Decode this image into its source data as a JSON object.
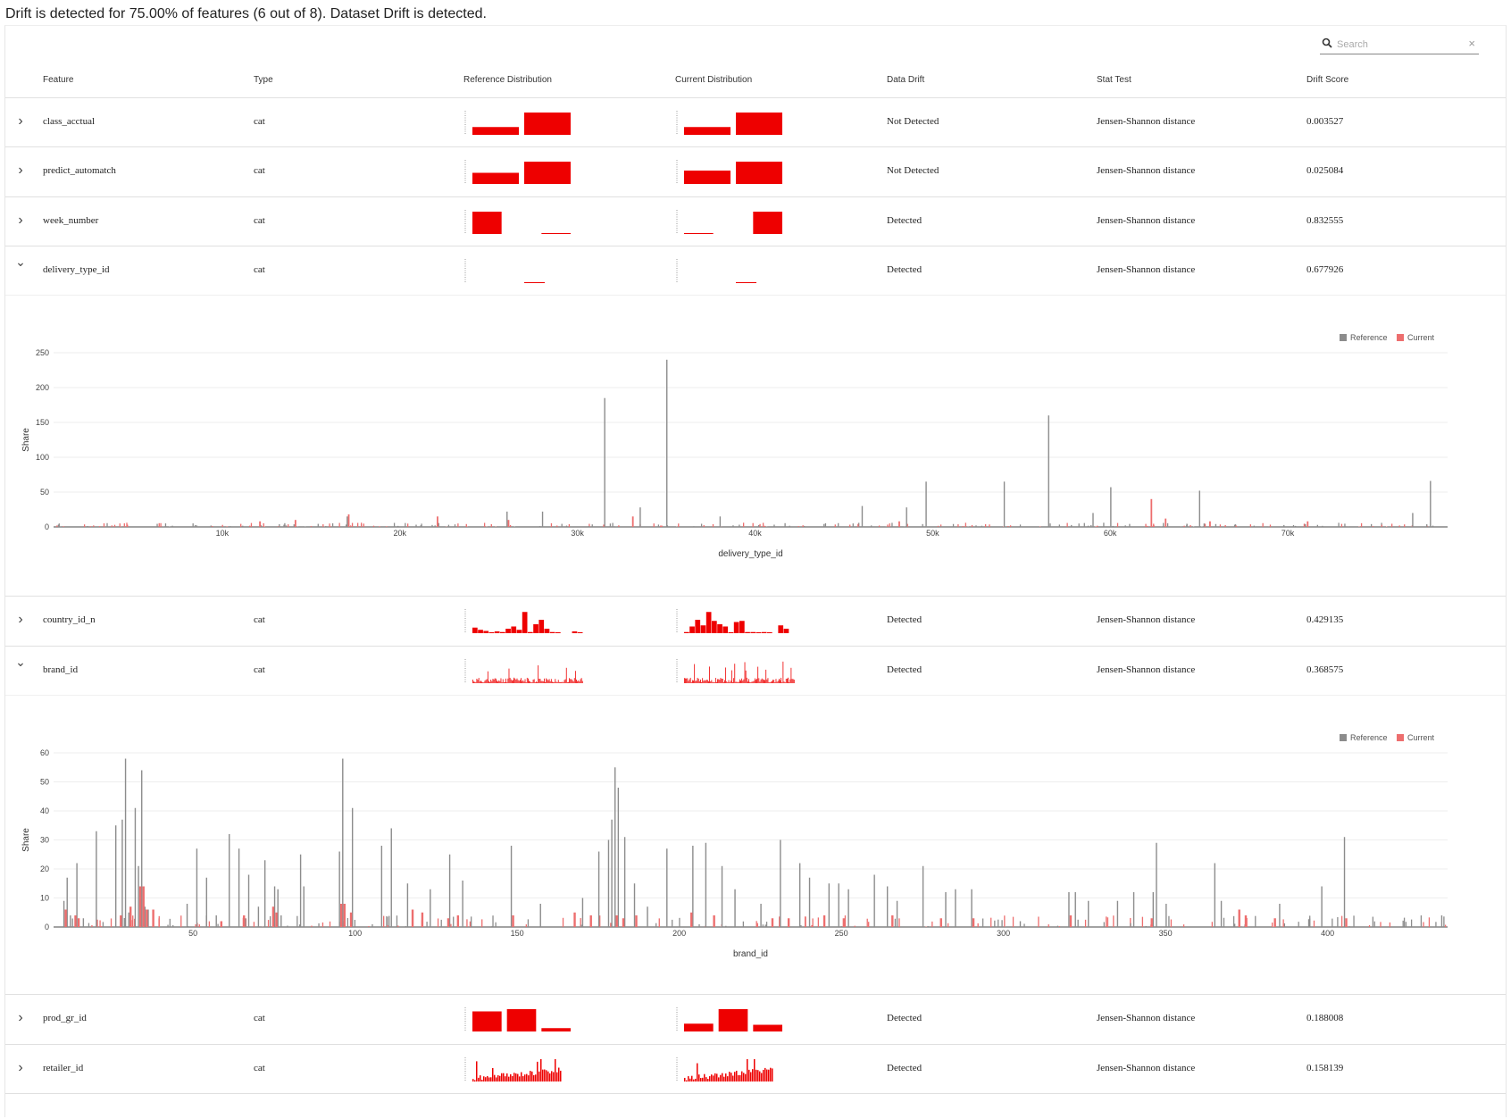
{
  "summary": "Drift is detected for 75.00% of features (6 out of 8). Dataset Drift is detected.",
  "search": {
    "placeholder": "Search",
    "clear": "×"
  },
  "columns": [
    "Feature",
    "Type",
    "Reference Distribution",
    "Current Distribution",
    "Data Drift",
    "Stat Test",
    "Drift Score"
  ],
  "colors": {
    "bar": "#ee0000",
    "reference": "#8c8c8c",
    "current": "#ed6e6e"
  },
  "rows": [
    {
      "feature": "class_acctual",
      "type": "cat",
      "drift": "Not Detected",
      "test": "Jensen-Shannon distance",
      "score": "0.003527",
      "expanded": false,
      "ref": [
        0.35,
        1.0
      ],
      "cur": [
        0.35,
        1.0
      ]
    },
    {
      "feature": "predict_automatch",
      "type": "cat",
      "drift": "Not Detected",
      "test": "Jensen-Shannon distance",
      "score": "0.025084",
      "expanded": false,
      "ref": [
        0.5,
        1.0
      ],
      "cur": [
        0.6,
        1.0
      ]
    },
    {
      "feature": "week_number",
      "type": "cat",
      "drift": "Detected",
      "test": "Jensen-Shannon distance",
      "score": "0.832555",
      "expanded": false,
      "ref": [
        1.0,
        0.0,
        0.04
      ],
      "cur": [
        0.04,
        0.0,
        1.0
      ]
    },
    {
      "feature": "delivery_type_id",
      "type": "cat",
      "drift": "Detected",
      "test": "Jensen-Shannon distance",
      "score": "0.677926",
      "expanded": true,
      "ref": [
        0.0,
        0.0,
        0.04,
        0.0
      ],
      "cur": [
        0.0,
        0.0,
        0.04,
        0.0
      ]
    },
    {
      "feature": "country_id_n",
      "type": "cat",
      "drift": "Detected",
      "test": "Jensen-Shannon distance",
      "score": "0.429135",
      "expanded": false,
      "ref": [
        0.25,
        0.15,
        0.1,
        0.02,
        0.08,
        0.05,
        0.2,
        0.3,
        0.15,
        0.95,
        0.05,
        0.4,
        0.6,
        0.2,
        0.05,
        0.02,
        0.0,
        0.0,
        0.08,
        0.02
      ],
      "cur": [
        0.05,
        0.3,
        0.6,
        0.35,
        0.95,
        0.55,
        0.4,
        0.3,
        0.02,
        0.5,
        0.55,
        0.05,
        0.05,
        0.02,
        0.05,
        0.02,
        0.0,
        0.35,
        0.2,
        0.0
      ]
    },
    {
      "feature": "brand_id",
      "type": "cat",
      "drift": "Detected",
      "test": "Jensen-Shannon distance",
      "score": "0.368575",
      "expanded": true,
      "ref": [],
      "cur": []
    },
    {
      "feature": "prod_gr_id",
      "type": "cat",
      "drift": "Detected",
      "test": "Jensen-Shannon distance",
      "score": "0.188008",
      "expanded": false,
      "ref": [
        0.9,
        1.0,
        0.15
      ],
      "cur": [
        0.35,
        1.0,
        0.3
      ]
    },
    {
      "feature": "retailer_id",
      "type": "cat",
      "drift": "Detected",
      "test": "Jensen-Shannon distance",
      "score": "0.158139",
      "expanded": false,
      "ref": [],
      "cur": []
    }
  ],
  "chart_data": [
    {
      "type": "bar",
      "xlabel": "delivery_type_id",
      "ylabel": "Share",
      "legend": [
        "Reference",
        "Current"
      ],
      "legend_position": "top-right",
      "xlim": [
        500,
        79000
      ],
      "ylim": [
        0,
        250
      ],
      "xticks": [
        "10k",
        "20k",
        "30k",
        "40k",
        "50k",
        "60k",
        "70k"
      ],
      "yticks": [
        0,
        50,
        100,
        150,
        200,
        250
      ],
      "series": [
        {
          "name": "Reference",
          "x": [
            31500,
            35000,
            56500,
            49600,
            54000,
            60000,
            65000,
            78000,
            33500,
            48500,
            77000,
            28000,
            26000,
            46000,
            59000,
            38000,
            17000
          ],
          "values": [
            185,
            240,
            160,
            65,
            65,
            57,
            52,
            66,
            28,
            28,
            20,
            22,
            22,
            30,
            20,
            15,
            15
          ]
        },
        {
          "name": "Current",
          "x": [
            62200,
            63000,
            17000,
            22000,
            26000,
            14000,
            12000,
            33000,
            48000,
            65500,
            71000
          ],
          "values": [
            40,
            12,
            18,
            15,
            10,
            10,
            8,
            15,
            8,
            8,
            8
          ]
        }
      ]
    },
    {
      "type": "bar",
      "xlabel": "brand_id",
      "ylabel": "Share",
      "legend": [
        "Reference",
        "Current"
      ],
      "legend_position": "top-right",
      "xlim": [
        7,
        437
      ],
      "ylim": [
        0,
        60
      ],
      "xticks": [
        50,
        100,
        150,
        200,
        250,
        300,
        350,
        400
      ],
      "yticks": [
        0,
        10,
        20,
        30,
        40,
        50,
        60
      ],
      "series": [
        {
          "name": "Reference",
          "x": [
            10,
            11,
            12,
            14,
            16,
            20,
            26,
            28,
            29,
            30,
            32,
            33,
            34,
            35,
            36,
            48,
            51,
            54,
            57,
            61,
            64,
            67,
            70,
            72,
            75,
            76,
            77,
            83,
            84,
            95,
            96,
            99,
            108,
            111,
            116,
            123,
            129,
            133,
            148,
            157,
            170,
            175,
            178,
            179,
            180,
            181,
            183,
            186,
            190,
            196,
            204,
            208,
            213,
            217,
            225,
            231,
            237,
            240,
            246,
            249,
            252,
            260,
            264,
            267,
            275,
            282,
            285,
            290,
            305,
            320,
            322,
            326,
            335,
            340,
            346,
            347,
            350,
            365,
            367,
            385,
            398,
            405,
            435
          ],
          "values": [
            9,
            17,
            4,
            22,
            3,
            33,
            35,
            37,
            58,
            5,
            41,
            21,
            54,
            7,
            6,
            8,
            27,
            17,
            4,
            32,
            27,
            18,
            7,
            23,
            14,
            13,
            4,
            25,
            14,
            26,
            58,
            41,
            28,
            34,
            15,
            13,
            25,
            16,
            28,
            8,
            10,
            26,
            30,
            37,
            55,
            48,
            31,
            15,
            7,
            27,
            28,
            29,
            21,
            13,
            8,
            30,
            22,
            17,
            15,
            15,
            13,
            18,
            14,
            9,
            21,
            12,
            13,
            13,
            2,
            12,
            12,
            9,
            9,
            12,
            12,
            29,
            8,
            22,
            9,
            8,
            14,
            31,
            4
          ]
        },
        {
          "name": "Current",
          "x": [
            10,
            13,
            14,
            27,
            30,
            33,
            34,
            35,
            37,
            58,
            65,
            74,
            75,
            95,
            96,
            98,
            117,
            120,
            128,
            131,
            148,
            167,
            172,
            180,
            182,
            186,
            203,
            210,
            228,
            233,
            244,
            250,
            265,
            280,
            290,
            320,
            345,
            372,
            374,
            383,
            405
          ],
          "values": [
            6,
            4,
            3,
            4,
            7,
            14,
            14,
            6,
            6,
            2,
            4,
            7,
            5,
            8,
            8,
            5,
            6,
            5,
            3,
            4,
            4,
            5,
            4,
            4,
            3,
            4,
            5,
            4,
            3,
            3,
            4,
            3,
            4,
            3,
            3,
            4,
            3,
            6,
            4,
            3,
            3
          ]
        }
      ]
    }
  ]
}
